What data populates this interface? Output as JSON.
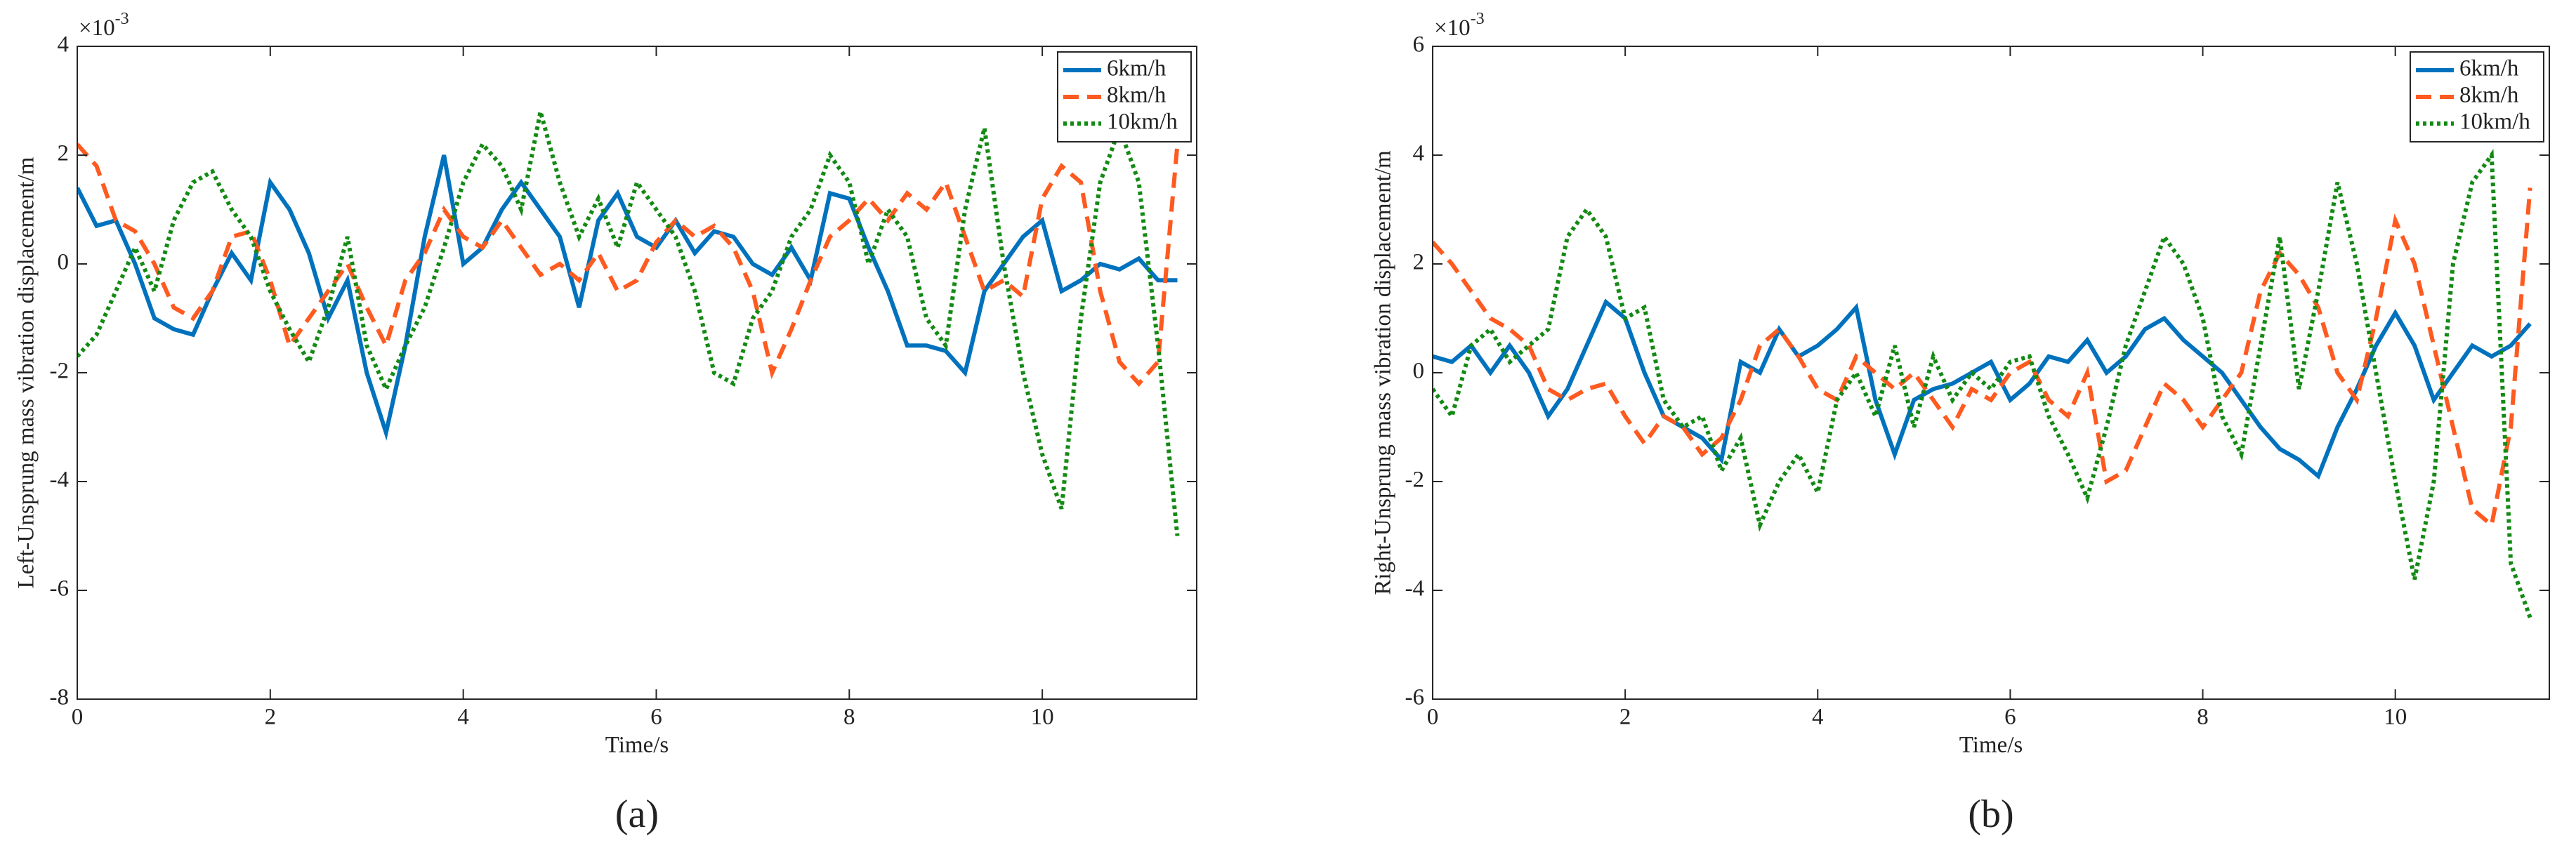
{
  "chart_data": [
    {
      "type": "line",
      "caption": "(a)",
      "xlabel": "Time/s",
      "ylabel": "Left-Unsprung mass vibration displacement/m",
      "y_multiplier": {
        "base": "×10",
        "exponent": "-3"
      },
      "legend": "upper right",
      "xlim": [
        0,
        11.6
      ],
      "xticks": [
        0,
        2,
        4,
        6,
        8,
        10
      ],
      "ylim": [
        -8,
        4
      ],
      "yticks": [
        -8,
        -6,
        -4,
        -2,
        0,
        2,
        4
      ],
      "x": [
        0,
        0.2,
        0.4,
        0.6,
        0.8,
        1,
        1.2,
        1.4,
        1.6,
        1.8,
        2,
        2.2,
        2.4,
        2.6,
        2.8,
        3,
        3.2,
        3.4,
        3.6,
        3.8,
        4,
        4.2,
        4.4,
        4.6,
        4.8,
        5,
        5.2,
        5.4,
        5.6,
        5.8,
        6,
        6.2,
        6.4,
        6.6,
        6.8,
        7,
        7.2,
        7.4,
        7.6,
        7.8,
        8,
        8.2,
        8.4,
        8.6,
        8.8,
        9,
        9.2,
        9.4,
        9.6,
        9.8,
        10,
        10.2,
        10.4,
        10.6,
        10.8,
        11,
        11.2,
        11.4
      ],
      "series": [
        {
          "name": "6km/h",
          "color": "#0072bd",
          "dash": "solid",
          "values": [
            1.4,
            0.7,
            0.8,
            0,
            -1.0,
            -1.2,
            -1.3,
            -0.5,
            0.2,
            -0.3,
            1.5,
            1.0,
            0.2,
            -1.0,
            -0.3,
            -2.0,
            -3.1,
            -1.5,
            0.5,
            2.0,
            0,
            0.3,
            1.0,
            1.5,
            1.0,
            0.5,
            -0.8,
            0.8,
            1.3,
            0.5,
            0.3,
            0.8,
            0.2,
            0.6,
            0.5,
            0,
            -0.2,
            0.3,
            -0.3,
            1.3,
            1.2,
            0.3,
            -0.5,
            -1.5,
            -1.5,
            -1.6,
            -2.0,
            -0.5,
            0,
            0.5,
            0.8,
            -0.5,
            -0.3,
            0,
            -0.1,
            0.1,
            -0.3,
            -0.3
          ]
        },
        {
          "name": "8km/h",
          "color": "#ff5a1f",
          "dash": "dashed",
          "values": [
            2.2,
            1.8,
            0.8,
            0.6,
            0,
            -0.8,
            -1.0,
            -0.5,
            0.5,
            0.6,
            -0.3,
            -1.5,
            -1.0,
            -0.5,
            0,
            -0.8,
            -1.5,
            -0.3,
            0.2,
            1.0,
            0.5,
            0.3,
            0.8,
            0.3,
            -0.2,
            0,
            -0.3,
            0.2,
            -0.5,
            -0.3,
            0.4,
            0.8,
            0.5,
            0.7,
            0.3,
            -0.5,
            -2.0,
            -1.2,
            -0.3,
            0.5,
            0.8,
            1.2,
            0.8,
            1.3,
            1.0,
            1.5,
            0.5,
            -0.5,
            -0.3,
            -0.6,
            1.2,
            1.8,
            1.5,
            -0.5,
            -1.8,
            -2.2,
            -1.8,
            2.2
          ]
        },
        {
          "name": "10km/h",
          "color": "#138a13",
          "dash": "dotted",
          "values": [
            -1.7,
            -1.3,
            -0.5,
            0.3,
            -0.5,
            0.8,
            1.5,
            1.7,
            1.0,
            0.5,
            -0.5,
            -1.2,
            -1.8,
            -0.8,
            0.5,
            -1.5,
            -2.3,
            -1.5,
            -0.8,
            0.3,
            1.5,
            2.2,
            1.8,
            1.0,
            2.8,
            1.5,
            0.5,
            1.2,
            0.3,
            1.5,
            1.0,
            0.5,
            -0.5,
            -2.0,
            -2.2,
            -1.0,
            -0.5,
            0.5,
            1.0,
            2.0,
            1.5,
            0,
            1.0,
            0.5,
            -1.0,
            -1.5,
            1.0,
            2.5,
            0,
            -2.0,
            -3.5,
            -4.5,
            -1.0,
            1.5,
            2.5,
            1.5,
            -1.5,
            -5.0
          ]
        }
      ]
    },
    {
      "type": "line",
      "caption": "(b)",
      "xlabel": "Time/s",
      "ylabel": "Right-Unsprung mass vibration displacement/m",
      "y_multiplier": {
        "base": "×10",
        "exponent": "-3"
      },
      "legend": "upper right",
      "xlim": [
        0,
        11.6
      ],
      "xticks": [
        0,
        2,
        4,
        6,
        8,
        10
      ],
      "ylim": [
        -6,
        6
      ],
      "yticks": [
        -6,
        -4,
        -2,
        0,
        2,
        4,
        6
      ],
      "x": [
        0,
        0.2,
        0.4,
        0.6,
        0.8,
        1,
        1.2,
        1.4,
        1.6,
        1.8,
        2,
        2.2,
        2.4,
        2.6,
        2.8,
        3,
        3.2,
        3.4,
        3.6,
        3.8,
        4,
        4.2,
        4.4,
        4.6,
        4.8,
        5,
        5.2,
        5.4,
        5.6,
        5.8,
        6,
        6.2,
        6.4,
        6.6,
        6.8,
        7,
        7.2,
        7.4,
        7.6,
        7.8,
        8,
        8.2,
        8.4,
        8.6,
        8.8,
        9,
        9.2,
        9.4,
        9.6,
        9.8,
        10,
        10.2,
        10.4,
        10.6,
        10.8,
        11,
        11.2,
        11.4
      ],
      "series": [
        {
          "name": "6km/h",
          "color": "#0072bd",
          "dash": "solid",
          "values": [
            0.3,
            0.2,
            0.5,
            0,
            0.5,
            0,
            -0.8,
            -0.3,
            0.5,
            1.3,
            1.0,
            0,
            -0.8,
            -1.0,
            -1.2,
            -1.6,
            0.2,
            0,
            0.8,
            0.3,
            0.5,
            0.8,
            1.2,
            -0.5,
            -1.5,
            -0.5,
            -0.3,
            -0.2,
            0,
            0.2,
            -0.5,
            -0.2,
            0.3,
            0.2,
            0.6,
            0,
            0.3,
            0.8,
            1.0,
            0.6,
            0.3,
            0,
            -0.5,
            -1.0,
            -1.4,
            -1.6,
            -1.9,
            -1.0,
            -0.3,
            0.5,
            1.1,
            0.5,
            -0.5,
            0,
            0.5,
            0.3,
            0.5,
            0.9
          ]
        },
        {
          "name": "8km/h",
          "color": "#ff5a1f",
          "dash": "dashed",
          "values": [
            2.4,
            2.0,
            1.5,
            1.0,
            0.8,
            0.5,
            -0.3,
            -0.5,
            -0.3,
            -0.2,
            -0.8,
            -1.3,
            -0.8,
            -1.0,
            -1.5,
            -1.2,
            -0.5,
            0.5,
            0.8,
            0.3,
            -0.3,
            -0.5,
            0.3,
            0,
            -0.3,
            0,
            -0.5,
            -1.0,
            -0.3,
            -0.5,
            0,
            0.2,
            -0.5,
            -0.8,
            0,
            -2.0,
            -1.8,
            -1.0,
            -0.2,
            -0.5,
            -1.0,
            -0.5,
            0,
            1.5,
            2.2,
            1.8,
            1.2,
            0,
            -0.5,
            1.0,
            2.8,
            2.0,
            0.5,
            -1.0,
            -2.5,
            -2.8,
            -1.0,
            3.4
          ]
        },
        {
          "name": "10km/h",
          "color": "#138a13",
          "dash": "dotted",
          "values": [
            -0.3,
            -0.8,
            0.5,
            0.8,
            0.2,
            0.5,
            0.8,
            2.5,
            3.0,
            2.5,
            1.0,
            1.2,
            -0.5,
            -1.0,
            -0.8,
            -1.8,
            -1.2,
            -2.8,
            -2.0,
            -1.5,
            -2.2,
            -0.5,
            0,
            -0.8,
            0.5,
            -1.0,
            0.3,
            -0.5,
            0,
            -0.3,
            0.2,
            0.3,
            -0.8,
            -1.5,
            -2.3,
            -1.0,
            0.5,
            1.5,
            2.5,
            2.0,
            1.0,
            -0.8,
            -1.5,
            0.5,
            2.5,
            -0.3,
            1.5,
            3.5,
            2.0,
            0,
            -2.0,
            -3.8,
            -2.0,
            2.0,
            3.5,
            4.0,
            -3.5,
            -4.5
          ]
        }
      ]
    }
  ]
}
